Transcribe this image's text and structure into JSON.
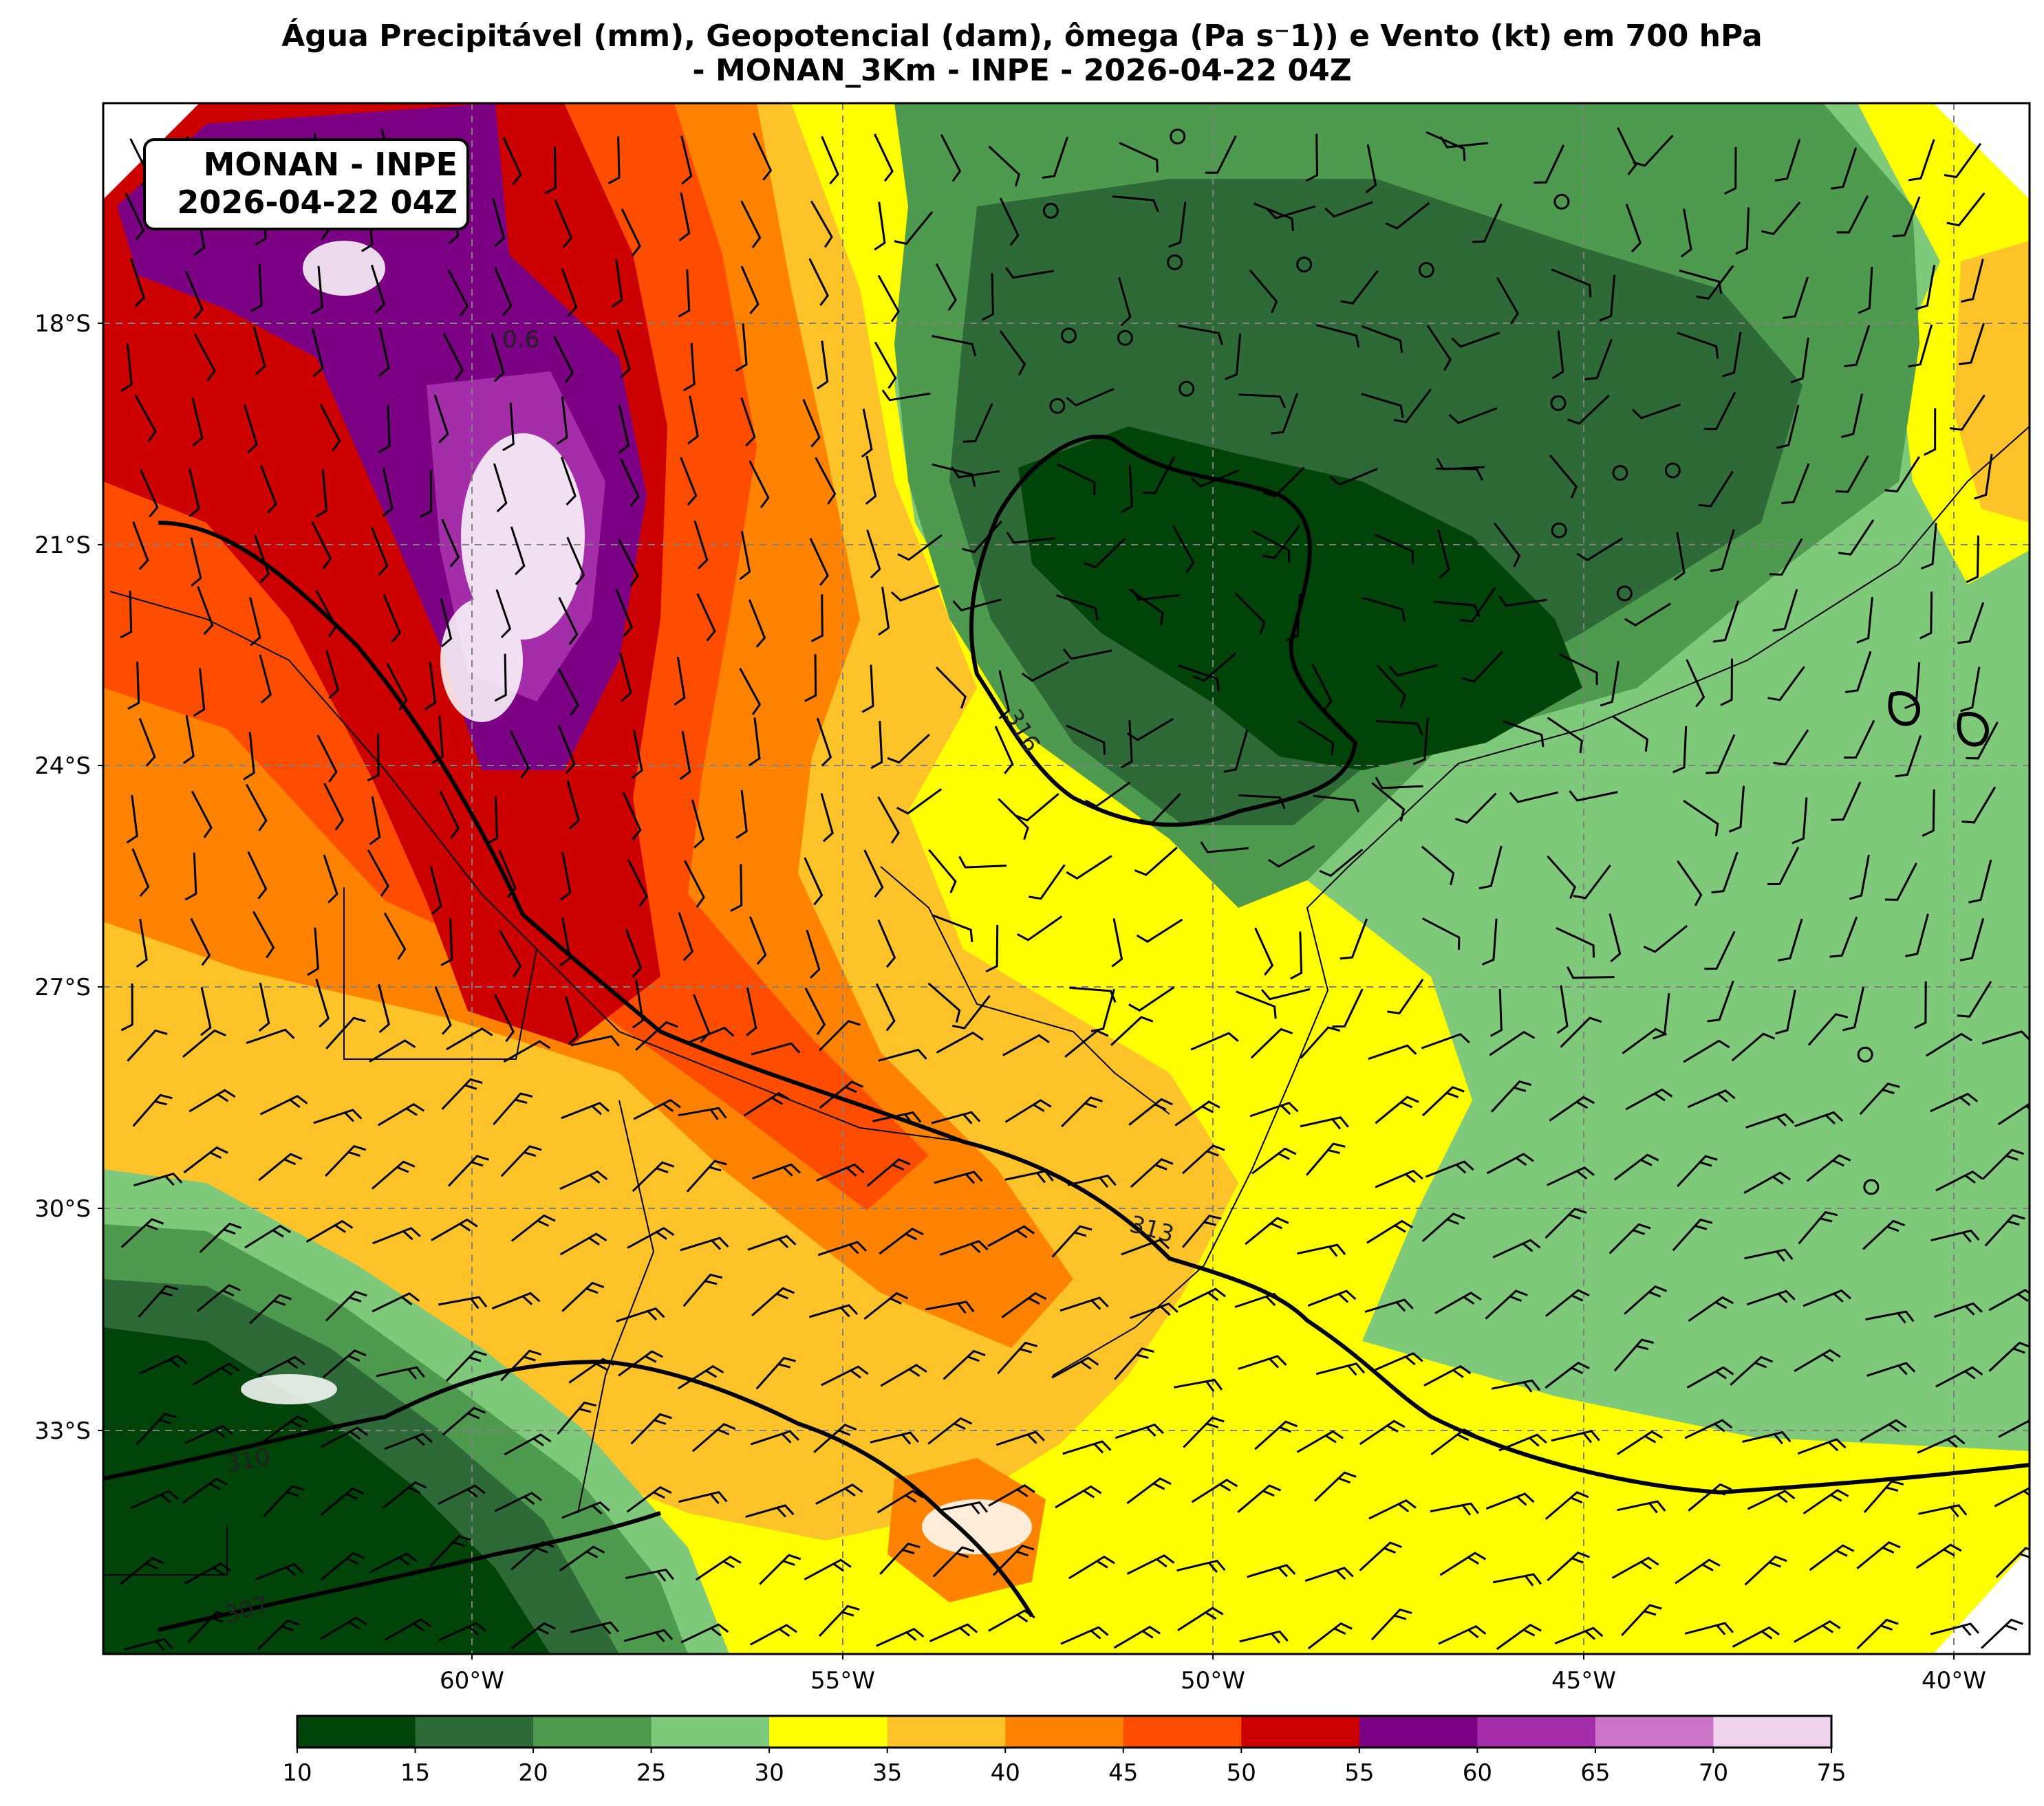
{
  "title": {
    "line1": "Água Precipitável (mm), Geopotencial (dam), ômega (Pa s⁻1)) e Vento (kt) em 700 hPa",
    "line2": "- MONAN_3Km - INPE - 2026-04-22 04Z"
  },
  "stamp": {
    "line1": "MONAN - INPE",
    "line2": "2026-04-22 04Z"
  },
  "axes": {
    "lat_ticks": [
      "18°S",
      "21°S",
      "24°S",
      "27°S",
      "30°S",
      "33°S"
    ],
    "lon_ticks": [
      "60°W",
      "55°W",
      "50°W",
      "45°W",
      "40°W"
    ]
  },
  "colorbar": {
    "ticks": [
      "10",
      "15",
      "20",
      "25",
      "30",
      "35",
      "40",
      "45",
      "50",
      "55",
      "60",
      "65",
      "70",
      "75"
    ],
    "colors": [
      "#00440a",
      "#2e6a37",
      "#4e9a4f",
      "#7fc97a",
      "#ffff00",
      "#ffc32a",
      "#ff8300",
      "#ff4d00",
      "#cc0000",
      "#7b0083",
      "#a42ea9",
      "#cc74c8",
      "#efd2ec"
    ]
  },
  "contour_labels": [
    "316",
    "313",
    "310",
    "307",
    "0.6"
  ],
  "palette": {
    "frame": "#000000",
    "grid": "#808080",
    "white_speckle": "#ffffff"
  }
}
